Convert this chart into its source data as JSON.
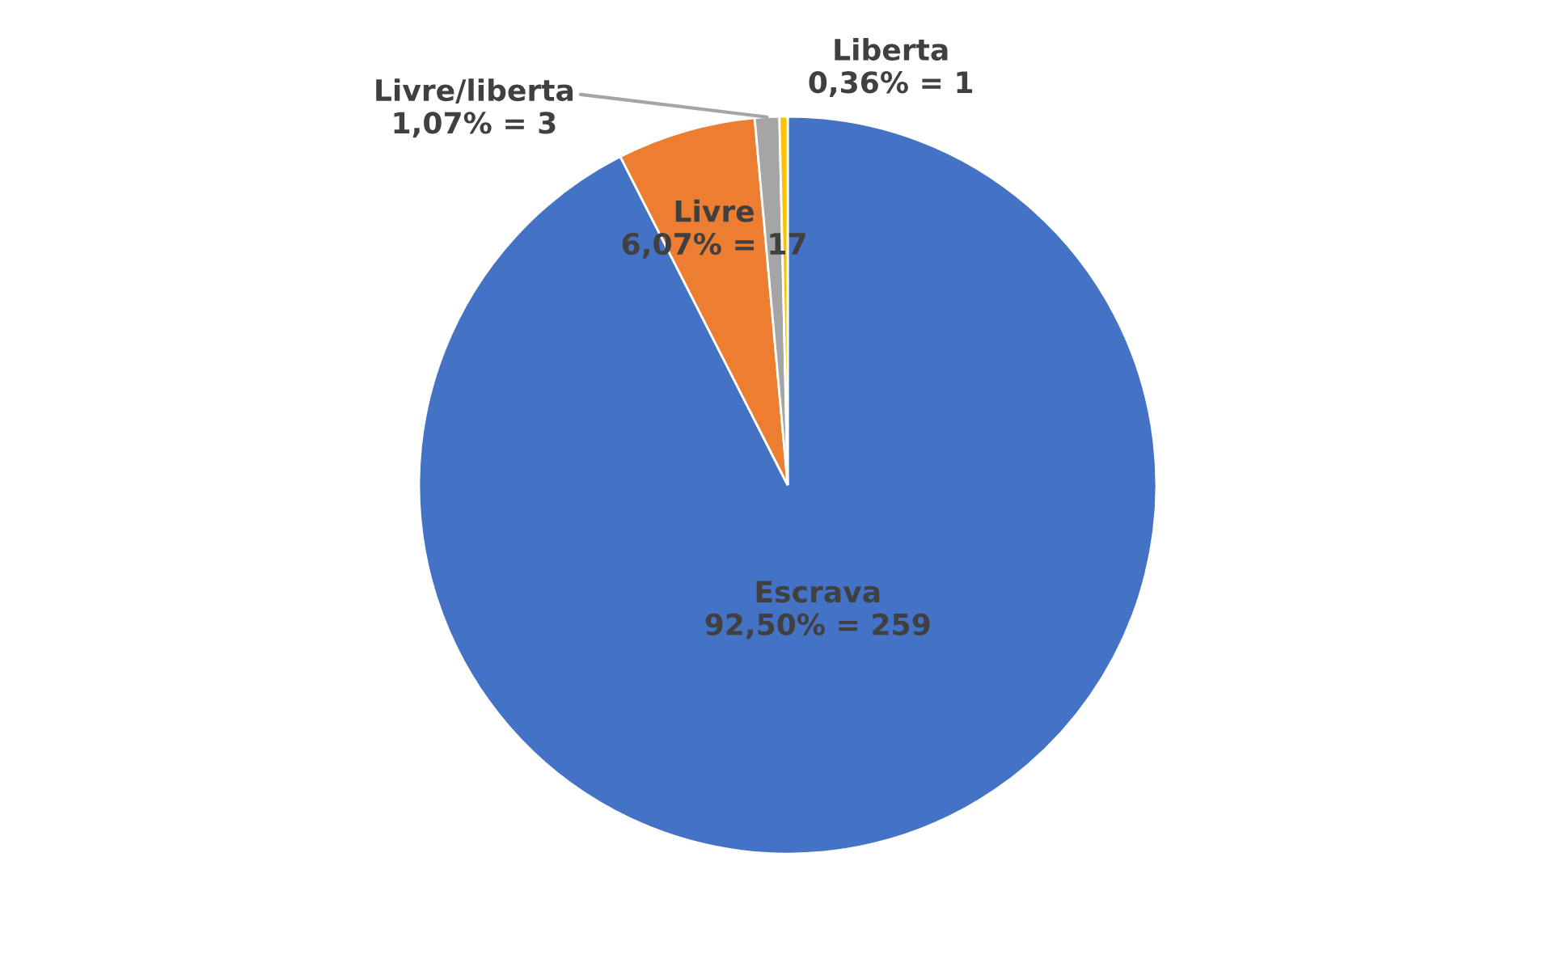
{
  "chart_data": {
    "type": "pie",
    "categories": [
      "Escrava",
      "Livre",
      "Livre/liberta",
      "Liberta"
    ],
    "values": [
      259,
      17,
      3,
      1
    ],
    "value_labels": [
      "92,50% = 259",
      "6,07% = 17",
      "1,07% = 3",
      "0,36% = 1"
    ],
    "colors": [
      "#4472c4",
      "#ed7d31",
      "#a5a5a5",
      "#ffc000"
    ],
    "legend": false
  }
}
